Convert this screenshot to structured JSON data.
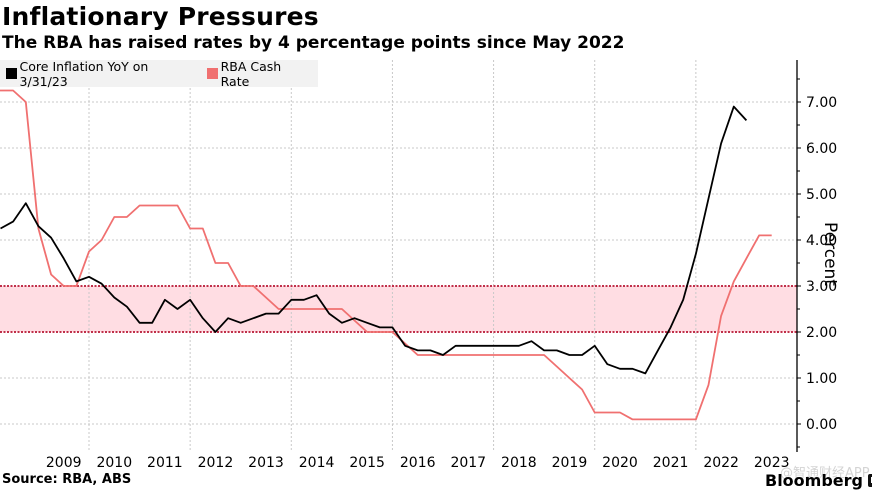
{
  "header": {
    "title": "Inflationary Pressures",
    "subtitle": "The RBA has raised rates by 4 percentage points since May 2022"
  },
  "legend": {
    "items": [
      {
        "label": "Core Inflation YoY on 3/31/23",
        "color": "#000000"
      },
      {
        "label": "RBA Cash Rate",
        "color": "#f07070"
      }
    ]
  },
  "footer": {
    "source": "Source: RBA, ABS",
    "brand": "Bloomberg",
    "watermark": "@智通财经APP"
  },
  "chart_data": {
    "type": "line",
    "title": "Inflationary Pressures",
    "subtitle": "The RBA has raised rates by 4 percentage points since May 2022",
    "xlabel": "",
    "ylabel": "Percent",
    "xlim": [
      2008.24,
      2024.0
    ],
    "ylim": [
      -0.6,
      7.9
    ],
    "y_ticks": [
      0,
      1,
      2,
      3,
      4,
      5,
      6,
      7
    ],
    "y_tick_labels": [
      "0.00",
      "1.00",
      "2.00",
      "3.00",
      "4.00",
      "5.00",
      "6.00",
      "7.00"
    ],
    "x_tick_labels": [
      "2009",
      "2010",
      "2011",
      "2012",
      "2013",
      "2014",
      "2015",
      "2016",
      "2017",
      "2018",
      "2019",
      "2020",
      "2021",
      "2022",
      "2023"
    ],
    "y_axis_side": "right",
    "grid": true,
    "legend_position": "top-left",
    "target_band": {
      "low": 2.0,
      "high": 3.0,
      "color": "#ffdde3",
      "border": "#c0304a"
    },
    "series": [
      {
        "name": "Core Inflation YoY on 3/31/23",
        "color": "#000000",
        "x": [
          2008.25,
          2008.5,
          2008.75,
          2009.0,
          2009.25,
          2009.5,
          2009.75,
          2010.0,
          2010.25,
          2010.5,
          2010.75,
          2011.0,
          2011.25,
          2011.5,
          2011.75,
          2012.0,
          2012.25,
          2012.5,
          2012.75,
          2013.0,
          2013.25,
          2013.5,
          2013.75,
          2014.0,
          2014.25,
          2014.5,
          2014.75,
          2015.0,
          2015.25,
          2015.5,
          2015.75,
          2016.0,
          2016.25,
          2016.5,
          2016.75,
          2017.0,
          2017.25,
          2017.5,
          2017.75,
          2018.0,
          2018.25,
          2018.5,
          2018.75,
          2019.0,
          2019.25,
          2019.5,
          2019.75,
          2020.0,
          2020.25,
          2020.5,
          2020.75,
          2021.0,
          2021.25,
          2021.5,
          2021.75,
          2022.0,
          2022.25,
          2022.5,
          2022.75,
          2023.0
        ],
        "values": [
          4.25,
          4.4,
          4.8,
          4.3,
          4.05,
          3.6,
          3.1,
          3.2,
          3.05,
          2.75,
          2.55,
          2.2,
          2.2,
          2.7,
          2.5,
          2.7,
          2.3,
          2.0,
          2.3,
          2.2,
          2.3,
          2.4,
          2.4,
          2.7,
          2.7,
          2.8,
          2.4,
          2.2,
          2.3,
          2.2,
          2.1,
          2.1,
          1.7,
          1.6,
          1.6,
          1.5,
          1.7,
          1.7,
          1.7,
          1.7,
          1.7,
          1.7,
          1.8,
          1.6,
          1.6,
          1.5,
          1.5,
          1.7,
          1.3,
          1.2,
          1.2,
          1.1,
          1.6,
          2.1,
          2.7,
          3.7,
          4.9,
          6.1,
          6.9,
          6.6
        ]
      },
      {
        "name": "RBA Cash Rate",
        "color": "#f07070",
        "x": [
          2008.24,
          2008.5,
          2008.75,
          2009.0,
          2009.25,
          2009.5,
          2009.75,
          2010.0,
          2010.25,
          2010.5,
          2010.75,
          2011.0,
          2011.25,
          2011.5,
          2011.75,
          2012.0,
          2012.25,
          2012.5,
          2012.75,
          2013.0,
          2013.25,
          2013.5,
          2013.75,
          2014.0,
          2014.5,
          2015.0,
          2015.25,
          2015.5,
          2016.0,
          2016.25,
          2016.5,
          2017.0,
          2018.0,
          2019.0,
          2019.25,
          2019.5,
          2019.75,
          2020.0,
          2020.25,
          2020.5,
          2020.75,
          2021.0,
          2021.5,
          2022.0,
          2022.25,
          2022.5,
          2022.75,
          2023.0,
          2023.25,
          2023.5
        ],
        "values": [
          7.25,
          7.25,
          7.0,
          4.25,
          3.25,
          3.0,
          3.0,
          3.75,
          4.0,
          4.5,
          4.5,
          4.75,
          4.75,
          4.75,
          4.75,
          4.25,
          4.25,
          3.5,
          3.5,
          3.0,
          3.0,
          2.75,
          2.5,
          2.5,
          2.5,
          2.5,
          2.25,
          2.0,
          2.0,
          1.75,
          1.5,
          1.5,
          1.5,
          1.5,
          1.25,
          1.0,
          0.75,
          0.25,
          0.25,
          0.25,
          0.1,
          0.1,
          0.1,
          0.1,
          0.85,
          2.35,
          3.1,
          3.6,
          4.1,
          4.1
        ]
      }
    ]
  }
}
